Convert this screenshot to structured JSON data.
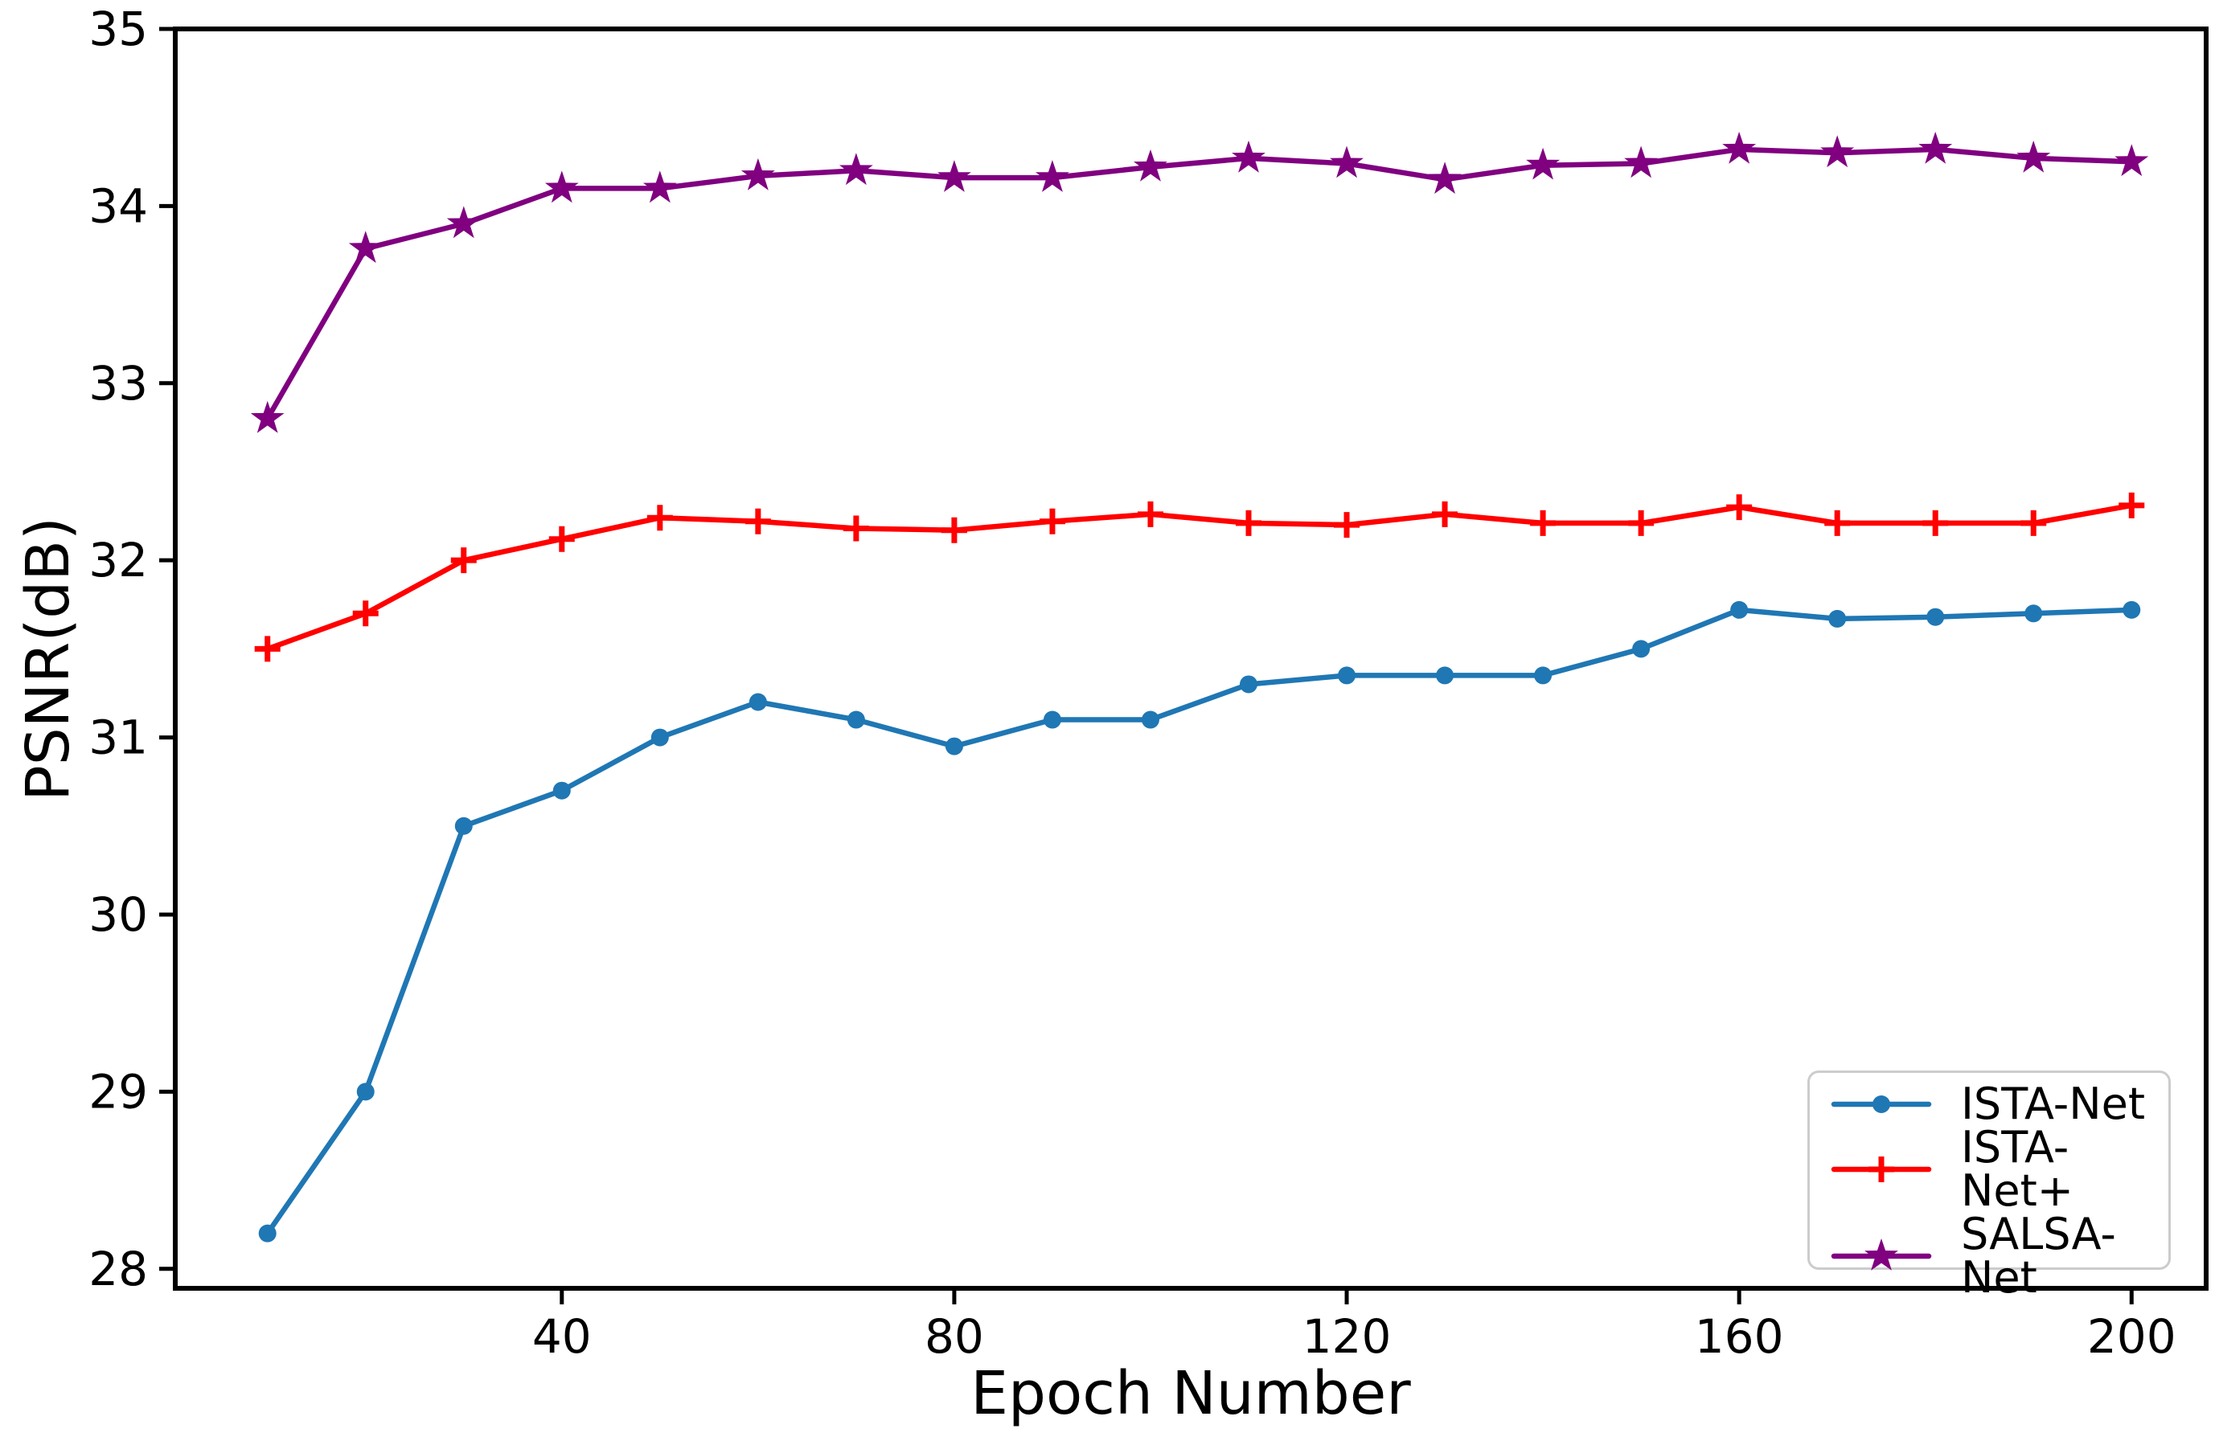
{
  "figure": {
    "background": "#ffffff",
    "axis_color": "#000000",
    "text_color": "#000000",
    "legend_border_color": "#cccccc"
  },
  "chart_data": {
    "type": "line",
    "title": "",
    "xlabel": "Epoch Number",
    "ylabel": "PSNR(dB)",
    "x": [
      10,
      20,
      30,
      40,
      50,
      60,
      70,
      80,
      90,
      100,
      110,
      120,
      130,
      140,
      150,
      160,
      170,
      180,
      190,
      200
    ],
    "series": [
      {
        "name": "ISTA-Net",
        "color": "#1f77b4",
        "marker": "circle",
        "values": [
          28.2,
          29.0,
          30.5,
          30.7,
          31.0,
          31.2,
          31.1,
          30.95,
          31.1,
          31.1,
          31.3,
          31.35,
          31.35,
          31.35,
          31.5,
          31.72,
          31.67,
          31.68,
          31.7,
          31.72
        ]
      },
      {
        "name": "ISTA-Net+",
        "color": "#ff0000",
        "marker": "plus",
        "values": [
          31.5,
          31.7,
          32.0,
          32.12,
          32.24,
          32.22,
          32.18,
          32.17,
          32.22,
          32.26,
          32.21,
          32.2,
          32.26,
          32.21,
          32.21,
          32.3,
          32.21,
          32.21,
          32.21,
          32.31
        ]
      },
      {
        "name": "SALSA-Net",
        "color": "#800080",
        "marker": "star",
        "values": [
          32.8,
          33.76,
          33.9,
          34.1,
          34.1,
          34.17,
          34.2,
          34.16,
          34.16,
          34.22,
          34.27,
          34.24,
          34.15,
          34.23,
          34.24,
          34.32,
          34.3,
          34.32,
          34.27,
          34.25
        ]
      }
    ],
    "x_ticks": [
      40,
      80,
      120,
      160,
      200
    ],
    "y_ticks": [
      28,
      29,
      30,
      31,
      32,
      33,
      34,
      35
    ],
    "xlim": [
      0.6,
      207.6
    ],
    "ylim": [
      27.89,
      35.0
    ],
    "grid": false,
    "legend_position": "lower right"
  }
}
